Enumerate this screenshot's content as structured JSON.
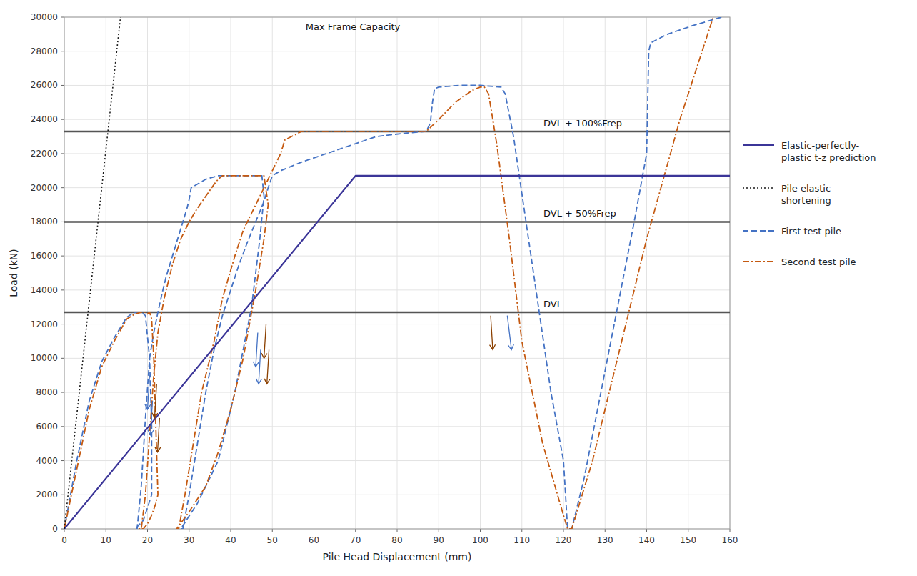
{
  "chart_data": {
    "type": "line",
    "title": "",
    "xlabel": "Pile Head Displacement (mm)",
    "ylabel": "Load (kN)",
    "xlim": [
      0,
      160
    ],
    "ylim": [
      0,
      30000
    ],
    "xticks": [
      0,
      10,
      20,
      30,
      40,
      50,
      60,
      70,
      80,
      90,
      100,
      110,
      120,
      130,
      140,
      150,
      160
    ],
    "yticks": [
      0,
      2000,
      4000,
      6000,
      8000,
      10000,
      12000,
      14000,
      16000,
      18000,
      20000,
      22000,
      24000,
      26000,
      28000,
      30000
    ],
    "grid": true,
    "legend": "right",
    "series": [
      {
        "name": "Elastic-perfectly-\nplastic t-z prediction",
        "color": "#3B3598",
        "line_style": "solid",
        "x": [
          0,
          70,
          160
        ],
        "values": [
          0,
          20700,
          20700
        ]
      },
      {
        "name": "Pile elastic\nshortening",
        "color": "#1A1A1A",
        "line_style": "dotted",
        "x": [
          0,
          13.5
        ],
        "values": [
          0,
          30000
        ]
      },
      {
        "name": "First test pile",
        "color": "#4472C4",
        "line_style": "dashed",
        "x": [
          0,
          3,
          6,
          9,
          12,
          15,
          16.5,
          17.5,
          18,
          18.5,
          19.5,
          20.5,
          21,
          21,
          19,
          17,
          17.5,
          18.5,
          19.5,
          20.5,
          21.5,
          22.5,
          23.5,
          24.5,
          26,
          27.5,
          28.5,
          29.5,
          30,
          30.5,
          34,
          37,
          40,
          43,
          46,
          46.5,
          47.5,
          48,
          47,
          45,
          41,
          37,
          32,
          28,
          28.5,
          30,
          32,
          34,
          36,
          38,
          40,
          42,
          44,
          46,
          48,
          49,
          50,
          52,
          57,
          63,
          69,
          75,
          82,
          87,
          88,
          88.5,
          89,
          90,
          95,
          100,
          105,
          106,
          108,
          111,
          114,
          117,
          120,
          121,
          121.5,
          122,
          125,
          129,
          133,
          137,
          140,
          140.5,
          141,
          145,
          151,
          158
        ],
        "values": [
          0,
          4000,
          7500,
          9800,
          11200,
          12400,
          12650,
          12700,
          12700,
          12700,
          12500,
          10000,
          6000,
          2000,
          500,
          0,
          0,
          2500,
          6500,
          10000,
          11500,
          12700,
          13800,
          14800,
          16000,
          17200,
          18000,
          18800,
          19300,
          20000,
          20500,
          20700,
          20700,
          20700,
          20700,
          20700,
          20700,
          19500,
          17000,
          13000,
          8000,
          4000,
          1500,
          0,
          0,
          2000,
          5000,
          8000,
          10500,
          12500,
          14000,
          15500,
          16800,
          18000,
          19200,
          20000,
          20700,
          21000,
          21500,
          22000,
          22500,
          23000,
          23200,
          23300,
          23800,
          25000,
          25800,
          25900,
          26000,
          26000,
          25900,
          25500,
          23000,
          18000,
          13000,
          8000,
          4000,
          0,
          0,
          0,
          3000,
          8000,
          13000,
          18000,
          22000,
          28000,
          28500,
          29000,
          29500,
          30000
        ]
      },
      {
        "name": "Second test pile",
        "color": "#C55A11",
        "line_style": "dashdot",
        "x": [
          0,
          3,
          6,
          9,
          12,
          15,
          17,
          18.5,
          19.5,
          20,
          20.5,
          21,
          21.5,
          22,
          22.5,
          22,
          21,
          20,
          19,
          18,
          18.5,
          19.5,
          20.5,
          21.5,
          22.5,
          24,
          26,
          28,
          30,
          32,
          34,
          36,
          37,
          38,
          38.5,
          41,
          44,
          47,
          48,
          49,
          48,
          46,
          43,
          40,
          37,
          34,
          30,
          27,
          27.5,
          29,
          31,
          33,
          36,
          38,
          41,
          43,
          46,
          48,
          50,
          52,
          53,
          57,
          62,
          67,
          72,
          77,
          82,
          87,
          90,
          94,
          98,
          100,
          101,
          102,
          104,
          107,
          110,
          115,
          120,
          121,
          122,
          127,
          133,
          140,
          148,
          156
        ],
        "values": [
          0,
          3500,
          7000,
          9500,
          11000,
          12300,
          12600,
          12700,
          12700,
          12600,
          12700,
          12300,
          10000,
          6000,
          2000,
          1500,
          800,
          300,
          0,
          0,
          0,
          2000,
          5500,
          9000,
          11500,
          13500,
          15500,
          17000,
          18000,
          18800,
          19500,
          20200,
          20500,
          20700,
          20700,
          20700,
          20700,
          20700,
          20700,
          19000,
          17000,
          14000,
          10000,
          7000,
          4500,
          2500,
          1000,
          0,
          0,
          2000,
          5000,
          8000,
          11000,
          13500,
          16000,
          17500,
          19000,
          20000,
          21000,
          22000,
          22800,
          23300,
          23300,
          23300,
          23300,
          23300,
          23300,
          23300,
          24000,
          25000,
          25700,
          25900,
          25900,
          25500,
          22500,
          17000,
          11000,
          5000,
          800,
          0,
          0,
          4000,
          10000,
          17000,
          24000,
          30000
        ]
      }
    ],
    "reference_lines": [
      {
        "value": 12700,
        "label": "DVL",
        "color": "#555555"
      },
      {
        "value": 18000,
        "label": "DVL + 50%Frep",
        "color": "#555555"
      },
      {
        "value": 23300,
        "label": "DVL + 100%Frep",
        "color": "#555555"
      }
    ],
    "annotations": [
      {
        "text": "Max Frame Capacity"
      }
    ],
    "arrows": [
      {
        "tail": [
          20.5,
          9000
        ],
        "head": [
          20.0,
          7000
        ],
        "color": "#4472C4"
      },
      {
        "tail": [
          21.2,
          7500
        ],
        "head": [
          20.7,
          5500
        ],
        "color": "#4472C4"
      },
      {
        "tail": [
          46.5,
          11500
        ],
        "head": [
          46.0,
          9500
        ],
        "color": "#4472C4"
      },
      {
        "tail": [
          47.2,
          10500
        ],
        "head": [
          46.7,
          8500
        ],
        "color": "#4472C4"
      },
      {
        "tail": [
          106.5,
          12500
        ],
        "head": [
          107.5,
          10500
        ],
        "color": "#4472C4"
      },
      {
        "tail": [
          22.2,
          8500
        ],
        "head": [
          21.7,
          6500
        ],
        "color": "#8B4000"
      },
      {
        "tail": [
          22.9,
          6500
        ],
        "head": [
          22.4,
          4500
        ],
        "color": "#8B4000"
      },
      {
        "tail": [
          48.5,
          12000
        ],
        "head": [
          48.0,
          10000
        ],
        "color": "#8B4000"
      },
      {
        "tail": [
          49.2,
          10500
        ],
        "head": [
          48.7,
          8500
        ],
        "color": "#8B4000"
      },
      {
        "tail": [
          102.5,
          12500
        ],
        "head": [
          103.0,
          10500
        ],
        "color": "#8B4000"
      }
    ]
  }
}
